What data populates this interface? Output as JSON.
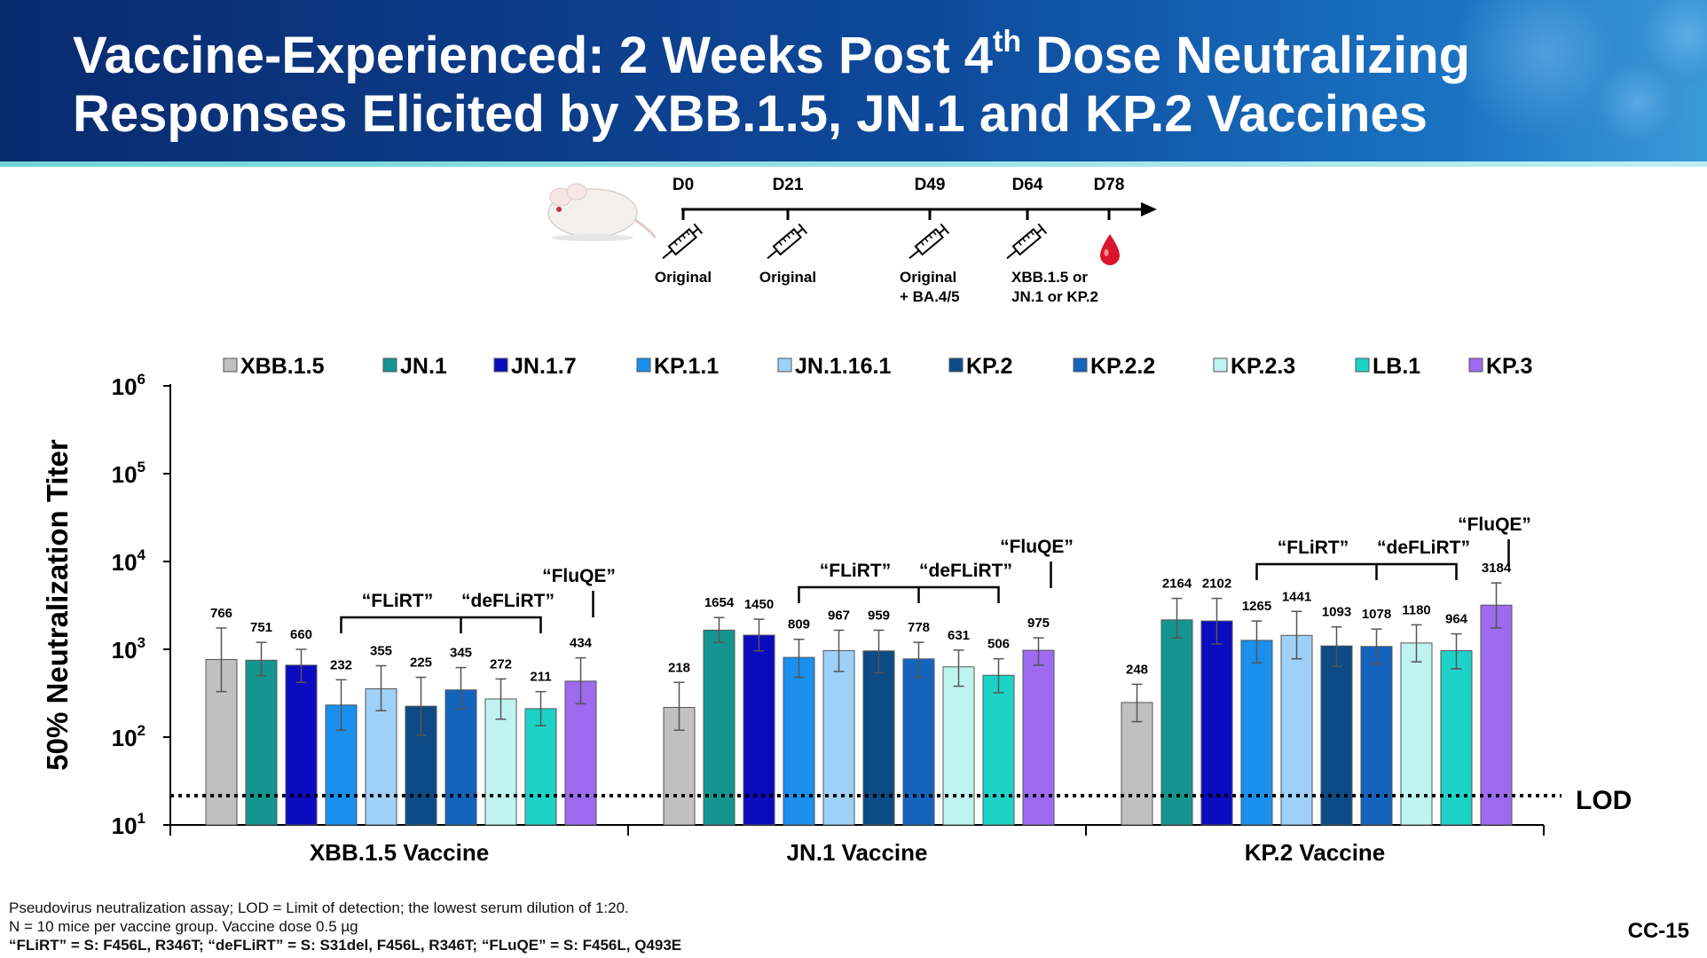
{
  "slide": {
    "title_line1_pre": "Vaccine-Experienced: 2 Weeks Post 4",
    "title_line1_sup": "th",
    "title_line1_post": " Dose Neutralizing",
    "title_line2": "Responses Elicited by XBB.1.5, JN.1 and KP.2 Vaccines",
    "slide_number": "CC-15"
  },
  "timeline": {
    "days": [
      "D0",
      "D21",
      "D49",
      "D64",
      "D78"
    ],
    "doses": [
      {
        "line1": "Original",
        "line2": ""
      },
      {
        "line1": "Original",
        "line2": ""
      },
      {
        "line1": "Original",
        "line2": "+ BA.4/5"
      },
      {
        "line1": "XBB.1.5 or",
        "line2": "JN.1 or KP.2"
      }
    ],
    "icons": [
      "mouse-icon",
      "syringe-icon",
      "blood-drop-icon"
    ]
  },
  "footnotes": [
    "Pseudovirus neutralization assay; LOD = Limit of detection; the lowest serum dilution of 1:20.",
    "N = 10 mice per vaccine group. Vaccine dose 0.5 µg"
  ],
  "footnote_defs": [
    {
      "text": "“FLiRT” = S: F456L, R346T; ",
      "bold": true
    },
    {
      "text": "“deFLiRT” = S: S31",
      "bold": true
    },
    {
      "text": "del",
      "bold": true
    },
    {
      "text": ", F456L, R346T; “FLuQE” = S: F456L, Q493E",
      "bold": true
    }
  ],
  "chart_data": {
    "type": "bar",
    "yscale": "log",
    "ylabel": "50% Neutralization Titer",
    "ylim": [
      10,
      1000000
    ],
    "yticks": [
      {
        "base": "10",
        "exp": "1"
      },
      {
        "base": "10",
        "exp": "2"
      },
      {
        "base": "10",
        "exp": "3"
      },
      {
        "base": "10",
        "exp": "4"
      },
      {
        "base": "10",
        "exp": "5"
      },
      {
        "base": "10",
        "exp": "6"
      }
    ],
    "lod_value": 20,
    "lod_label": "LOD",
    "categories": [
      "XBB.1.5 Vaccine",
      "JN.1 Vaccine",
      "KP.2 Vaccine"
    ],
    "series": [
      {
        "name": "XBB.1.5",
        "color": "#c0c0c0",
        "values": [
          766,
          218,
          248
        ],
        "err_low": [
          330,
          120,
          150
        ],
        "err_high": [
          1750,
          420,
          400
        ]
      },
      {
        "name": "JN.1",
        "color": "#14958f",
        "values": [
          751,
          1654,
          2164
        ],
        "err_low": [
          500,
          1200,
          1350
        ],
        "err_high": [
          1200,
          2300,
          3800
        ]
      },
      {
        "name": "JN.1.7",
        "color": "#0b0bbf",
        "values": [
          660,
          1450,
          2102
        ],
        "err_low": [
          420,
          960,
          1150
        ],
        "err_high": [
          1000,
          2200,
          3800
        ]
      },
      {
        "name": "KP.1.1",
        "color": "#1a8fee",
        "values": [
          232,
          809,
          1265
        ],
        "err_low": [
          120,
          480,
          700
        ],
        "err_high": [
          450,
          1300,
          2100
        ]
      },
      {
        "name": "JN.1.16.1",
        "color": "#9fd0f7",
        "values": [
          355,
          967,
          1441
        ],
        "err_low": [
          200,
          560,
          780
        ],
        "err_high": [
          650,
          1650,
          2700
        ]
      },
      {
        "name": "KP.2",
        "color": "#0d4a86",
        "values": [
          225,
          959,
          1093
        ],
        "err_low": [
          105,
          540,
          640
        ],
        "err_high": [
          480,
          1650,
          1800
        ]
      },
      {
        "name": "KP.2.2",
        "color": "#1464bd",
        "values": [
          345,
          778,
          1078
        ],
        "err_low": [
          210,
          480,
          680
        ],
        "err_high": [
          620,
          1200,
          1700
        ]
      },
      {
        "name": "KP.2.3",
        "color": "#bff3f0",
        "values": [
          272,
          631,
          1180
        ],
        "err_low": [
          160,
          380,
          720
        ],
        "err_high": [
          460,
          980,
          1900
        ]
      },
      {
        "name": "LB.1",
        "color": "#1dd3c8",
        "values": [
          211,
          506,
          964
        ],
        "err_low": [
          135,
          320,
          600
        ],
        "err_high": [
          330,
          780,
          1500
        ]
      },
      {
        "name": "KP.3",
        "color": "#9d6af0",
        "values": [
          434,
          975,
          3184
        ],
        "err_low": [
          240,
          660,
          1750
        ],
        "err_high": [
          800,
          1350,
          5700
        ]
      }
    ],
    "value_labels": [
      [
        "766",
        "218",
        "248"
      ],
      [
        "751",
        "1654",
        "2164"
      ],
      [
        "660",
        "1450",
        "2102"
      ],
      [
        "232",
        "809",
        "1265"
      ],
      [
        "355",
        "967",
        "1441"
      ],
      [
        "225",
        "959",
        "1093"
      ],
      [
        "345",
        "778",
        "1078"
      ],
      [
        "272",
        "631",
        "1180"
      ],
      [
        "211",
        "506",
        "964"
      ],
      [
        "434",
        "975",
        "3184"
      ]
    ],
    "bracket_labels": {
      "flirt": "“FLiRT”",
      "deflirt": "“deFLiRT”",
      "fluqe": "“FluQE”"
    },
    "legend_position": "top",
    "grid": false
  }
}
